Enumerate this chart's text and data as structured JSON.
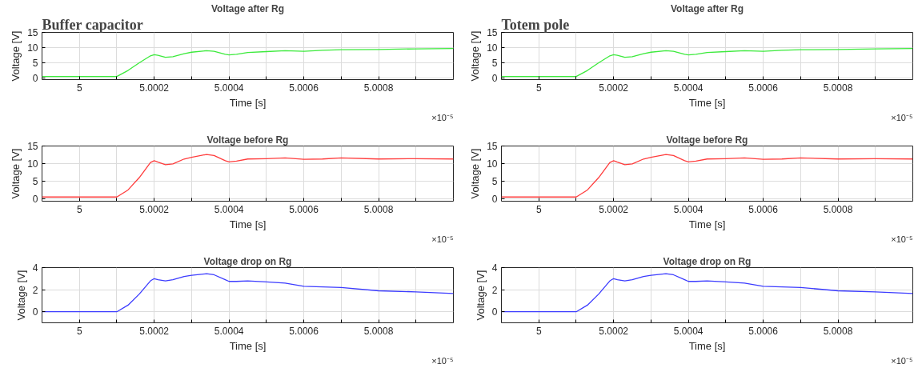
{
  "chart_data": [
    {
      "type": "line",
      "title": "Voltage after Rg",
      "xlabel": "Time [s]",
      "ylabel": "Voltage [V]",
      "annotations": [
        "×10⁻⁵",
        "Buffer capacitor"
      ],
      "xlim": [
        4.9999,
        5.001
      ],
      "ylim": [
        -0.5,
        15
      ],
      "xticks": [
        5,
        {
          "value": 5.0001,
          "label": null
        },
        5.0002,
        {
          "value": 5.0003,
          "label": null
        },
        5.0004,
        {
          "value": 5.0005,
          "label": null
        },
        5.0006,
        {
          "value": 5.0007,
          "label": null
        },
        5.0008,
        {
          "value": 5.0009,
          "label": null
        }
      ],
      "yticks": [
        0,
        5,
        10,
        15
      ],
      "grid": true,
      "x": [
        4.9999,
        5.0001,
        5.00013,
        5.00016,
        5.00019,
        5.0002,
        5.00021,
        5.00023,
        5.00025,
        5.00028,
        5.0003,
        5.00034,
        5.00036,
        5.00039,
        5.0004,
        5.00042,
        5.00045,
        5.0005,
        5.00055,
        5.0006,
        5.00065,
        5.0007,
        5.0008,
        5.0009,
        5.001
      ],
      "series": [
        {
          "color": "#3cea3c",
          "values": [
            0.5,
            0.5,
            2.5,
            5,
            7.3,
            7.7,
            7.5,
            6.8,
            7.0,
            8.0,
            8.5,
            9.0,
            8.8,
            7.8,
            7.6,
            7.8,
            8.4,
            8.7,
            9.0,
            8.8,
            9.1,
            9.3,
            9.4,
            9.6,
            9.7
          ]
        }
      ]
    },
    {
      "type": "line",
      "title": "Voltage after Rg",
      "xlabel": "Time [s]",
      "ylabel": "Voltage [V]",
      "annotations": [
        "×10⁻⁵",
        "Totem pole"
      ],
      "xlim": [
        4.9999,
        5.001
      ],
      "ylim": [
        -0.5,
        15
      ],
      "xticks": [
        5,
        {
          "value": 5.0001,
          "label": null
        },
        5.0002,
        {
          "value": 5.0003,
          "label": null
        },
        5.0004,
        {
          "value": 5.0005,
          "label": null
        },
        5.0006,
        {
          "value": 5.0007,
          "label": null
        },
        5.0008,
        {
          "value": 5.0009,
          "label": null
        }
      ],
      "yticks": [
        0,
        5,
        10,
        15
      ],
      "grid": true,
      "x": [
        4.9999,
        5.0001,
        5.00013,
        5.00016,
        5.00019,
        5.0002,
        5.00021,
        5.00023,
        5.00025,
        5.00028,
        5.0003,
        5.00034,
        5.00036,
        5.00039,
        5.0004,
        5.00042,
        5.00045,
        5.0005,
        5.00055,
        5.0006,
        5.00065,
        5.0007,
        5.0008,
        5.0009,
        5.001
      ],
      "series": [
        {
          "color": "#3cea3c",
          "values": [
            0.5,
            0.5,
            2.5,
            5,
            7.3,
            7.7,
            7.5,
            6.8,
            7.0,
            8.0,
            8.5,
            9.0,
            8.8,
            7.8,
            7.6,
            7.8,
            8.4,
            8.7,
            9.0,
            8.8,
            9.1,
            9.3,
            9.4,
            9.6,
            9.7
          ]
        }
      ]
    },
    {
      "type": "line",
      "title": "Voltage before Rg",
      "xlabel": "Time [s]",
      "ylabel": "Voltage [V]",
      "annotations": [
        "×10⁻⁵"
      ],
      "xlim": [
        4.9999,
        5.001
      ],
      "ylim": [
        -0.7,
        15
      ],
      "xticks": [
        5,
        {
          "value": 5.0001,
          "label": null
        },
        5.0002,
        {
          "value": 5.0003,
          "label": null
        },
        5.0004,
        {
          "value": 5.0005,
          "label": null
        },
        5.0006,
        {
          "value": 5.0007,
          "label": null
        },
        5.0008,
        {
          "value": 5.0009,
          "label": null
        }
      ],
      "yticks": [
        0,
        5,
        10,
        15
      ],
      "grid": true,
      "x": [
        4.9999,
        5.0001,
        5.00013,
        5.00016,
        5.00019,
        5.0002,
        5.00021,
        5.00023,
        5.00025,
        5.00028,
        5.0003,
        5.00034,
        5.00036,
        5.00039,
        5.0004,
        5.00042,
        5.00045,
        5.0005,
        5.00055,
        5.0006,
        5.00065,
        5.0007,
        5.0008,
        5.0009,
        5.001
      ],
      "series": [
        {
          "color": "#ff3c3c",
          "values": [
            0.5,
            0.5,
            2.5,
            6,
            10.3,
            10.8,
            10.4,
            9.7,
            9.9,
            11.3,
            11.8,
            12.6,
            12.3,
            10.8,
            10.5,
            10.7,
            11.3,
            11.4,
            11.6,
            11.2,
            11.3,
            11.6,
            11.3,
            11.4,
            11.3
          ]
        }
      ]
    },
    {
      "type": "line",
      "title": "Voltage before Rg",
      "xlabel": "Time [s]",
      "ylabel": "Voltage [V]",
      "annotations": [
        "×10⁻⁵"
      ],
      "xlim": [
        4.9999,
        5.001
      ],
      "ylim": [
        -0.7,
        15
      ],
      "xticks": [
        5,
        {
          "value": 5.0001,
          "label": null
        },
        5.0002,
        {
          "value": 5.0003,
          "label": null
        },
        5.0004,
        {
          "value": 5.0005,
          "label": null
        },
        5.0006,
        {
          "value": 5.0007,
          "label": null
        },
        5.0008,
        {
          "value": 5.0009,
          "label": null
        }
      ],
      "yticks": [
        0,
        5,
        10,
        15
      ],
      "grid": true,
      "x": [
        4.9999,
        5.0001,
        5.00013,
        5.00016,
        5.00019,
        5.0002,
        5.00021,
        5.00023,
        5.00025,
        5.00028,
        5.0003,
        5.00034,
        5.00036,
        5.00039,
        5.0004,
        5.00042,
        5.00045,
        5.0005,
        5.00055,
        5.0006,
        5.00065,
        5.0007,
        5.0008,
        5.0009,
        5.001
      ],
      "series": [
        {
          "color": "#ff3c3c",
          "values": [
            0.5,
            0.5,
            2.5,
            6,
            10.3,
            10.8,
            10.4,
            9.7,
            9.9,
            11.3,
            11.8,
            12.6,
            12.3,
            10.8,
            10.5,
            10.7,
            11.3,
            11.4,
            11.6,
            11.2,
            11.3,
            11.6,
            11.3,
            11.4,
            11.3
          ]
        }
      ]
    },
    {
      "type": "line",
      "title": "Voltage drop on Rg",
      "xlabel": "Time [s]",
      "ylabel": "Voltage [V]",
      "annotations": [
        "×10⁻⁵"
      ],
      "xlim": [
        4.9999,
        5.001
      ],
      "ylim": [
        -1,
        4
      ],
      "xticks": [
        5,
        {
          "value": 5.0001,
          "label": null
        },
        5.0002,
        {
          "value": 5.0003,
          "label": null
        },
        5.0004,
        {
          "value": 5.0005,
          "label": null
        },
        5.0006,
        {
          "value": 5.0007,
          "label": null
        },
        5.0008,
        {
          "value": 5.0009,
          "label": null
        }
      ],
      "yticks": [
        0,
        2,
        4
      ],
      "grid": true,
      "x": [
        4.9999,
        5.0001,
        5.00013,
        5.00016,
        5.00019,
        5.0002,
        5.00021,
        5.00023,
        5.00025,
        5.00028,
        5.0003,
        5.00034,
        5.00036,
        5.00039,
        5.0004,
        5.00042,
        5.00045,
        5.0005,
        5.00055,
        5.0006,
        5.0007,
        5.0008,
        5.0009,
        5.001
      ],
      "series": [
        {
          "color": "#3c3cff",
          "values": [
            0,
            0,
            0.6,
            1.6,
            2.8,
            3.0,
            2.9,
            2.8,
            2.9,
            3.2,
            3.3,
            3.45,
            3.35,
            2.9,
            2.75,
            2.75,
            2.8,
            2.7,
            2.6,
            2.3,
            2.2,
            1.9,
            1.8,
            1.65
          ]
        }
      ]
    },
    {
      "type": "line",
      "title": "Voltage drop on Rg",
      "xlabel": "Time [s]",
      "ylabel": "Voltage [V]",
      "annotations": [
        "×10⁻⁵"
      ],
      "xlim": [
        4.9999,
        5.001
      ],
      "ylim": [
        -1,
        4
      ],
      "xticks": [
        5,
        {
          "value": 5.0001,
          "label": null
        },
        5.0002,
        {
          "value": 5.0003,
          "label": null
        },
        5.0004,
        {
          "value": 5.0005,
          "label": null
        },
        5.0006,
        {
          "value": 5.0007,
          "label": null
        },
        5.0008,
        {
          "value": 5.0009,
          "label": null
        }
      ],
      "yticks": [
        0,
        2,
        4
      ],
      "grid": true,
      "x": [
        4.9999,
        5.0001,
        5.00013,
        5.00016,
        5.00019,
        5.0002,
        5.00021,
        5.00023,
        5.00025,
        5.00028,
        5.0003,
        5.00034,
        5.00036,
        5.00039,
        5.0004,
        5.00042,
        5.00045,
        5.0005,
        5.00055,
        5.0006,
        5.0007,
        5.0008,
        5.0009,
        5.001
      ],
      "series": [
        {
          "color": "#3c3cff",
          "values": [
            0,
            0,
            0.6,
            1.6,
            2.8,
            3.0,
            2.9,
            2.8,
            2.9,
            3.2,
            3.3,
            3.45,
            3.35,
            2.9,
            2.75,
            2.75,
            2.8,
            2.7,
            2.6,
            2.3,
            2.2,
            1.9,
            1.8,
            1.65
          ]
        }
      ]
    }
  ]
}
